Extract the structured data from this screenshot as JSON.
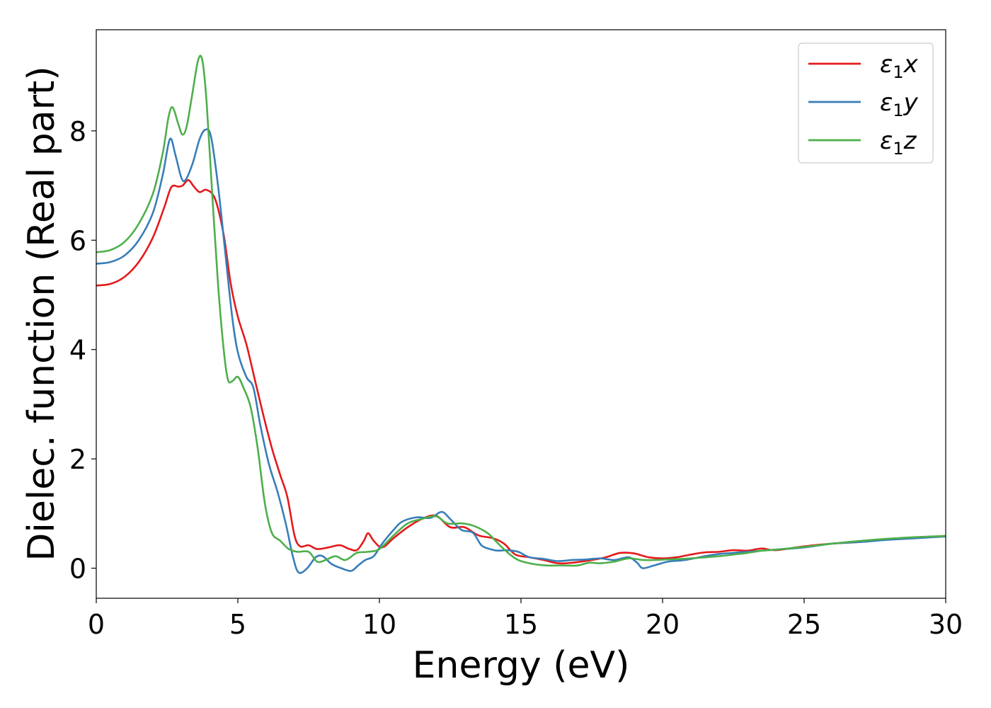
{
  "chart_data": {
    "type": "line",
    "title": "",
    "xlabel": "Energy (eV)",
    "ylabel": "Dielec. function (Real part)",
    "xlim": [
      0,
      30
    ],
    "ylim": [
      -0.55,
      9.85
    ],
    "xticks": [
      0,
      5,
      10,
      15,
      20,
      25,
      30
    ],
    "xtick_labels": [
      "0",
      "5",
      "10",
      "15",
      "20",
      "25",
      "30"
    ],
    "yticks": [
      0,
      2,
      4,
      6,
      8
    ],
    "ytick_labels": [
      "0",
      "2",
      "4",
      "6",
      "8"
    ],
    "grid": false,
    "legend_position": "top-right",
    "series": [
      {
        "name": "ε1x",
        "legend": {
          "symbol": "ε",
          "sub": "1",
          "axis": "x"
        },
        "color": "#e41a1c",
        "points": [
          [
            0,
            5.17
          ],
          [
            0.5,
            5.2
          ],
          [
            1,
            5.33
          ],
          [
            1.5,
            5.6
          ],
          [
            2,
            6.05
          ],
          [
            2.4,
            6.6
          ],
          [
            2.65,
            6.97
          ],
          [
            2.9,
            6.98
          ],
          [
            3.05,
            7.0
          ],
          [
            3.25,
            7.1
          ],
          [
            3.45,
            6.98
          ],
          [
            3.65,
            6.88
          ],
          [
            3.9,
            6.92
          ],
          [
            4.2,
            6.75
          ],
          [
            4.5,
            6.1
          ],
          [
            4.75,
            5.2
          ],
          [
            5.0,
            4.6
          ],
          [
            5.3,
            4.1
          ],
          [
            5.6,
            3.45
          ],
          [
            5.9,
            2.8
          ],
          [
            6.2,
            2.2
          ],
          [
            6.5,
            1.7
          ],
          [
            6.75,
            1.3
          ],
          [
            7.0,
            0.6
          ],
          [
            7.2,
            0.4
          ],
          [
            7.5,
            0.42
          ],
          [
            7.8,
            0.35
          ],
          [
            8.2,
            0.38
          ],
          [
            8.6,
            0.42
          ],
          [
            8.9,
            0.36
          ],
          [
            9.2,
            0.33
          ],
          [
            9.45,
            0.5
          ],
          [
            9.6,
            0.64
          ],
          [
            9.8,
            0.5
          ],
          [
            10.1,
            0.38
          ],
          [
            10.5,
            0.55
          ],
          [
            11.0,
            0.75
          ],
          [
            11.5,
            0.9
          ],
          [
            12.0,
            0.96
          ],
          [
            12.5,
            0.75
          ],
          [
            13.0,
            0.75
          ],
          [
            13.5,
            0.6
          ],
          [
            14.0,
            0.55
          ],
          [
            14.4,
            0.45
          ],
          [
            14.8,
            0.25
          ],
          [
            15.3,
            0.2
          ],
          [
            15.8,
            0.15
          ],
          [
            16.3,
            0.09
          ],
          [
            16.8,
            0.1
          ],
          [
            17.5,
            0.15
          ],
          [
            18.0,
            0.2
          ],
          [
            18.5,
            0.28
          ],
          [
            19.0,
            0.27
          ],
          [
            19.5,
            0.2
          ],
          [
            20.0,
            0.18
          ],
          [
            20.5,
            0.2
          ],
          [
            21.0,
            0.25
          ],
          [
            21.5,
            0.29
          ],
          [
            22.0,
            0.3
          ],
          [
            22.5,
            0.33
          ],
          [
            23.0,
            0.32
          ],
          [
            23.5,
            0.36
          ],
          [
            24.0,
            0.33
          ],
          [
            25.0,
            0.4
          ],
          [
            26.0,
            0.45
          ],
          [
            27.0,
            0.48
          ],
          [
            28.0,
            0.53
          ],
          [
            29.0,
            0.56
          ],
          [
            30.0,
            0.59
          ]
        ]
      },
      {
        "name": "ε1y",
        "legend": {
          "symbol": "ε",
          "sub": "1",
          "axis": "y"
        },
        "color": "#377eb8",
        "points": [
          [
            0,
            5.57
          ],
          [
            0.5,
            5.6
          ],
          [
            1,
            5.72
          ],
          [
            1.5,
            6.0
          ],
          [
            2,
            6.5
          ],
          [
            2.35,
            7.2
          ],
          [
            2.6,
            7.85
          ],
          [
            2.8,
            7.55
          ],
          [
            3.0,
            7.15
          ],
          [
            3.15,
            7.1
          ],
          [
            3.4,
            7.4
          ],
          [
            3.65,
            7.85
          ],
          [
            3.85,
            8.02
          ],
          [
            4.05,
            7.9
          ],
          [
            4.3,
            7.0
          ],
          [
            4.55,
            5.8
          ],
          [
            4.8,
            4.6
          ],
          [
            5.0,
            3.95
          ],
          [
            5.3,
            3.5
          ],
          [
            5.55,
            3.3
          ],
          [
            5.8,
            2.6
          ],
          [
            6.1,
            1.9
          ],
          [
            6.4,
            1.4
          ],
          [
            6.7,
            0.8
          ],
          [
            6.95,
            0.2
          ],
          [
            7.15,
            -0.08
          ],
          [
            7.45,
            0.0
          ],
          [
            7.75,
            0.2
          ],
          [
            8.0,
            0.22
          ],
          [
            8.3,
            0.08
          ],
          [
            8.65,
            0.0
          ],
          [
            9.0,
            -0.05
          ],
          [
            9.25,
            0.05
          ],
          [
            9.5,
            0.15
          ],
          [
            9.8,
            0.22
          ],
          [
            10.1,
            0.45
          ],
          [
            10.5,
            0.7
          ],
          [
            10.8,
            0.85
          ],
          [
            11.3,
            0.93
          ],
          [
            11.8,
            0.92
          ],
          [
            12.2,
            1.03
          ],
          [
            12.5,
            0.9
          ],
          [
            12.9,
            0.7
          ],
          [
            13.3,
            0.65
          ],
          [
            13.6,
            0.42
          ],
          [
            13.9,
            0.35
          ],
          [
            14.2,
            0.32
          ],
          [
            14.5,
            0.33
          ],
          [
            14.9,
            0.3
          ],
          [
            15.3,
            0.2
          ],
          [
            15.8,
            0.17
          ],
          [
            16.3,
            0.13
          ],
          [
            16.8,
            0.15
          ],
          [
            17.3,
            0.16
          ],
          [
            17.8,
            0.18
          ],
          [
            18.3,
            0.15
          ],
          [
            18.8,
            0.2
          ],
          [
            19.1,
            0.1
          ],
          [
            19.3,
            0.0
          ],
          [
            19.7,
            0.05
          ],
          [
            20.2,
            0.12
          ],
          [
            20.8,
            0.15
          ],
          [
            21.5,
            0.22
          ],
          [
            22.0,
            0.26
          ],
          [
            22.5,
            0.28
          ],
          [
            23.0,
            0.3
          ],
          [
            24.0,
            0.34
          ],
          [
            25.0,
            0.38
          ],
          [
            26.0,
            0.45
          ],
          [
            27.0,
            0.48
          ],
          [
            28.0,
            0.52
          ],
          [
            29.0,
            0.55
          ],
          [
            30.0,
            0.58
          ]
        ]
      },
      {
        "name": "ε1z",
        "legend": {
          "symbol": "ε",
          "sub": "1",
          "axis": "z"
        },
        "color": "#4daf4a",
        "points": [
          [
            0,
            5.78
          ],
          [
            0.5,
            5.82
          ],
          [
            1,
            5.97
          ],
          [
            1.5,
            6.3
          ],
          [
            2,
            6.85
          ],
          [
            2.35,
            7.6
          ],
          [
            2.55,
            8.25
          ],
          [
            2.7,
            8.43
          ],
          [
            2.9,
            8.12
          ],
          [
            3.05,
            7.93
          ],
          [
            3.2,
            8.1
          ],
          [
            3.4,
            8.7
          ],
          [
            3.6,
            9.3
          ],
          [
            3.75,
            9.28
          ],
          [
            3.9,
            8.5
          ],
          [
            4.1,
            6.8
          ],
          [
            4.3,
            5.2
          ],
          [
            4.5,
            4.0
          ],
          [
            4.65,
            3.45
          ],
          [
            4.8,
            3.42
          ],
          [
            5.0,
            3.5
          ],
          [
            5.2,
            3.3
          ],
          [
            5.45,
            2.95
          ],
          [
            5.7,
            2.2
          ],
          [
            5.95,
            1.2
          ],
          [
            6.2,
            0.65
          ],
          [
            6.5,
            0.5
          ],
          [
            6.8,
            0.35
          ],
          [
            7.1,
            0.3
          ],
          [
            7.5,
            0.3
          ],
          [
            7.8,
            0.12
          ],
          [
            8.1,
            0.15
          ],
          [
            8.45,
            0.22
          ],
          [
            8.8,
            0.15
          ],
          [
            9.2,
            0.28
          ],
          [
            9.6,
            0.3
          ],
          [
            10.0,
            0.35
          ],
          [
            10.5,
            0.6
          ],
          [
            11.0,
            0.82
          ],
          [
            11.5,
            0.9
          ],
          [
            12.0,
            0.95
          ],
          [
            12.4,
            0.82
          ],
          [
            12.9,
            0.82
          ],
          [
            13.3,
            0.78
          ],
          [
            13.8,
            0.65
          ],
          [
            14.1,
            0.5
          ],
          [
            14.5,
            0.3
          ],
          [
            14.9,
            0.15
          ],
          [
            15.4,
            0.08
          ],
          [
            15.9,
            0.05
          ],
          [
            16.5,
            0.05
          ],
          [
            17.0,
            0.05
          ],
          [
            17.4,
            0.1
          ],
          [
            17.8,
            0.09
          ],
          [
            18.3,
            0.12
          ],
          [
            18.8,
            0.18
          ],
          [
            19.3,
            0.15
          ],
          [
            19.7,
            0.15
          ],
          [
            20.2,
            0.16
          ],
          [
            21.0,
            0.18
          ],
          [
            22.0,
            0.22
          ],
          [
            22.5,
            0.25
          ],
          [
            23.0,
            0.28
          ],
          [
            23.5,
            0.32
          ],
          [
            24.0,
            0.34
          ],
          [
            25.0,
            0.39
          ],
          [
            26.0,
            0.45
          ],
          [
            27.0,
            0.5
          ],
          [
            28.0,
            0.54
          ],
          [
            29.0,
            0.57
          ],
          [
            30.0,
            0.59
          ]
        ]
      }
    ]
  }
}
